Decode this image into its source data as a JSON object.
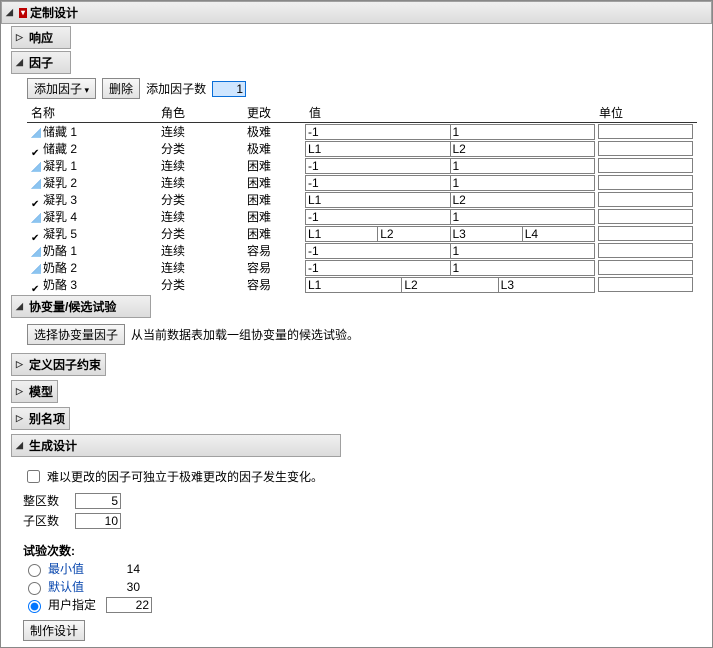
{
  "main": {
    "title": "定制设计"
  },
  "sections": {
    "response": {
      "title": "响应",
      "expanded": false
    },
    "factors": {
      "title": "因子",
      "expanded": true,
      "toolbar": {
        "add_dd": "添加因子",
        "delete_btn": "删除",
        "add_n_label": "添加因子数",
        "add_n_value": "1"
      },
      "columns": {
        "name": "名称",
        "role": "角色",
        "change": "更改",
        "value": "值",
        "unit": "单位"
      },
      "rows": [
        {
          "icon": "cont",
          "name": "储藏 1",
          "role": "连续",
          "change": "极难",
          "values": [
            "-1",
            "1"
          ],
          "cells": 2
        },
        {
          "icon": "cat",
          "name": "储藏 2",
          "role": "分类",
          "change": "极难",
          "values": [
            "L1",
            "L2"
          ],
          "cells": 2
        },
        {
          "icon": "cont",
          "name": "凝乳 1",
          "role": "连续",
          "change": "困难",
          "values": [
            "-1",
            "1"
          ],
          "cells": 2
        },
        {
          "icon": "cont",
          "name": "凝乳 2",
          "role": "连续",
          "change": "困难",
          "values": [
            "-1",
            "1"
          ],
          "cells": 2
        },
        {
          "icon": "cat",
          "name": "凝乳 3",
          "role": "分类",
          "change": "困难",
          "values": [
            "L1",
            "L2"
          ],
          "cells": 2
        },
        {
          "icon": "cont",
          "name": "凝乳 4",
          "role": "连续",
          "change": "困难",
          "values": [
            "-1",
            "1"
          ],
          "cells": 2
        },
        {
          "icon": "cat",
          "name": "凝乳 5",
          "role": "分类",
          "change": "困难",
          "values": [
            "L1",
            "L2",
            "L3",
            "L4"
          ],
          "cells": 4
        },
        {
          "icon": "cont",
          "name": "奶酪 1",
          "role": "连续",
          "change": "容易",
          "values": [
            "-1",
            "1"
          ],
          "cells": 2
        },
        {
          "icon": "cont",
          "name": "奶酪 2",
          "role": "连续",
          "change": "容易",
          "values": [
            "-1",
            "1"
          ],
          "cells": 2
        },
        {
          "icon": "cat",
          "name": "奶酪 3",
          "role": "分类",
          "change": "容易",
          "values": [
            "L1",
            "L2",
            "L3"
          ],
          "cells": 3
        }
      ]
    },
    "covariates": {
      "title": "协变量/候选试验",
      "expanded": true,
      "button": "选择协变量因子",
      "desc": "从当前数据表加载一组协变量的候选试验。"
    },
    "constraints": {
      "title": "定义因子约束",
      "expanded": false
    },
    "model": {
      "title": "模型",
      "expanded": false
    },
    "aliases": {
      "title": "别名项",
      "expanded": false
    },
    "generate": {
      "title": "生成设计",
      "expanded": true,
      "checkbox_label": "难以更改的因子可独立于极难更改的因子发生变化。",
      "checkbox_checked": false,
      "whole_plots_label": "整区数",
      "whole_plots_value": "5",
      "sub_plots_label": "子区数",
      "sub_plots_value": "10",
      "runs_label": "试验次数:",
      "radio": {
        "min_label": "最小值",
        "min_value": "14",
        "default_label": "默认值",
        "default_value": "30",
        "user_label": "用户指定",
        "user_value": "22",
        "selected": "user"
      },
      "make_button": "制作设计"
    }
  }
}
